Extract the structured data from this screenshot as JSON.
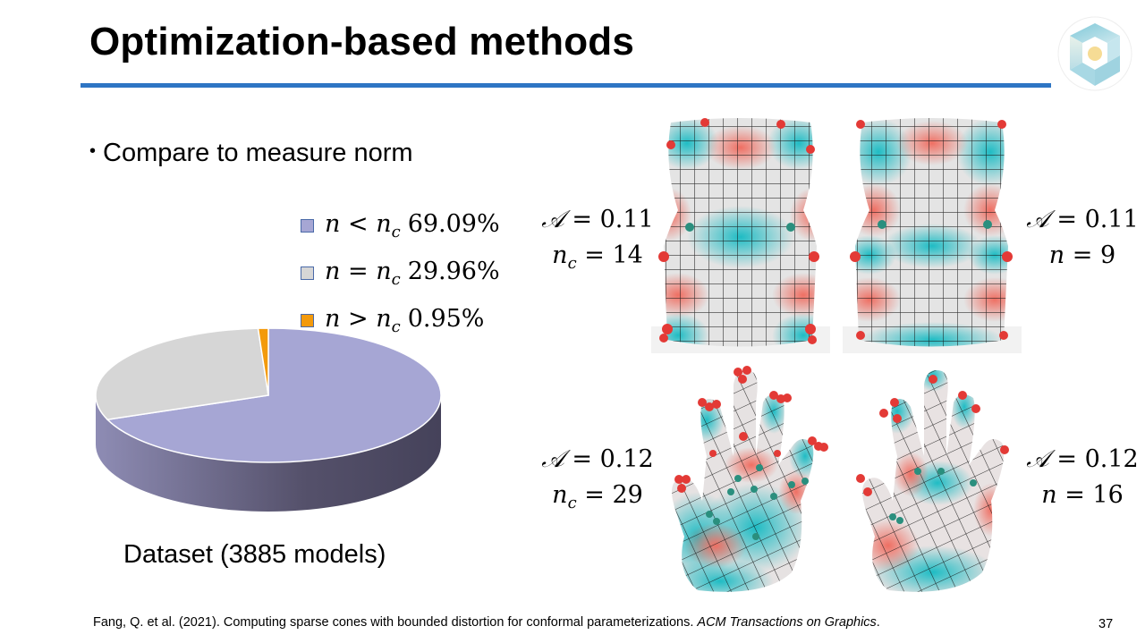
{
  "slide": {
    "title": "Optimization-based methods",
    "bullet": "Compare to measure norm",
    "page_number": "37",
    "accent_color": "#2e75c4",
    "logo_icon": "cube-logo-icon"
  },
  "chart_data": {
    "type": "pie",
    "style": "3d",
    "title": "",
    "caption": "Dataset (3885 models)",
    "legend_position": "right-top",
    "slices": [
      {
        "label_var": "n",
        "label_op": "<",
        "label_sub": "c",
        "label": "n < n_c",
        "value": 69.09,
        "value_text": "69.09%",
        "color": "#a6a6d4"
      },
      {
        "label_var": "n",
        "label_op": "=",
        "label_sub": "c",
        "label": "n = n_c",
        "value": 29.96,
        "value_text": "29.96%",
        "color": "#d6d6d6"
      },
      {
        "label_var": "n",
        "label_op": ">",
        "label_sub": "c",
        "label": "n > n_c",
        "value": 0.95,
        "value_text": "0.95%",
        "color": "#f39a0c"
      }
    ]
  },
  "figures": [
    {
      "name": "chair-nc",
      "model": "chair",
      "metric_symbol": "A",
      "metric_value": "0.11",
      "count_var": "n",
      "count_sub": "c",
      "count_value": "14"
    },
    {
      "name": "chair-n",
      "model": "chair",
      "metric_symbol": "A",
      "metric_value": "0.11",
      "count_var": "n",
      "count_sub": "",
      "count_value": "9"
    },
    {
      "name": "hand-nc",
      "model": "hand",
      "metric_symbol": "A",
      "metric_value": "0.12",
      "count_var": "n",
      "count_sub": "c",
      "count_value": "29"
    },
    {
      "name": "hand-n",
      "model": "hand",
      "metric_symbol": "A",
      "metric_value": "0.12",
      "count_var": "n",
      "count_sub": "",
      "count_value": "16"
    }
  ],
  "math": {
    "equals": "="
  },
  "reference": {
    "text": "Fang, Q. et al. (2021). Computing sparse cones with bounded distortion for conformal parameterizations. ",
    "journal": "ACM Transactions on Graphics",
    "end": "."
  }
}
